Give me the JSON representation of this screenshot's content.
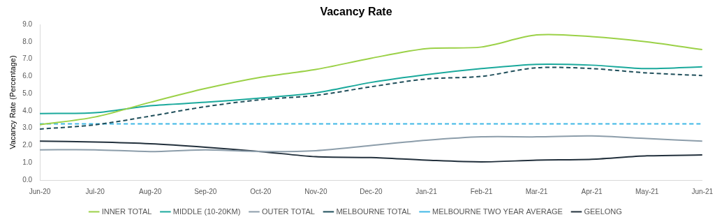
{
  "chart_data": {
    "type": "line",
    "title": "Vacancy Rate",
    "y_label": "Vacancy Rate (Percentage)",
    "categories": [
      "Jun-20",
      "Jul-20",
      "Aug-20",
      "Sep-20",
      "Oct-20",
      "Nov-20",
      "Dec-20",
      "Jan-21",
      "Feb-21",
      "Mar-21",
      "Apr-21",
      "May-21",
      "Jun-21"
    ],
    "series": [
      {
        "name": "INNER TOTAL",
        "color": "#9bd147",
        "line_style": "solid",
        "marker": "none",
        "values": [
          3.2,
          3.65,
          4.5,
          5.3,
          5.95,
          6.4,
          7.05,
          7.6,
          7.7,
          8.4,
          8.3,
          8.0,
          7.55
        ]
      },
      {
        "name": "MIDDLE (10-20KM)",
        "color": "#1aa99c",
        "line_style": "solid",
        "marker": "none",
        "values": [
          3.85,
          3.9,
          4.3,
          4.5,
          4.75,
          5.05,
          5.65,
          6.1,
          6.45,
          6.7,
          6.65,
          6.45,
          6.55
        ]
      },
      {
        "name": "OUTER TOTAL",
        "color": "#8c9daa",
        "line_style": "solid",
        "marker": "none",
        "values": [
          1.75,
          1.75,
          1.65,
          1.75,
          1.65,
          1.7,
          2.0,
          2.3,
          2.5,
          2.5,
          2.55,
          2.4,
          2.25
        ]
      },
      {
        "name": "MELBOURNE TOTAL",
        "color": "#1f4e5a",
        "line_style": "dashed",
        "marker": "none",
        "values": [
          2.95,
          3.2,
          3.7,
          4.25,
          4.65,
          4.9,
          5.4,
          5.85,
          6.0,
          6.5,
          6.45,
          6.2,
          6.05
        ]
      },
      {
        "name": "MELBOURNE TWO YEAR AVERAGE",
        "color": "#3fb7e5",
        "line_style": "dashed",
        "marker": "none",
        "values": [
          3.25,
          3.25,
          3.25,
          3.25,
          3.25,
          3.25,
          3.25,
          3.25,
          3.25,
          3.25,
          3.25,
          3.25,
          3.25
        ]
      },
      {
        "name": "GEELONG",
        "color": "#22303c",
        "line_style": "solid",
        "marker": "none",
        "values": [
          2.25,
          2.2,
          2.1,
          1.9,
          1.65,
          1.35,
          1.3,
          1.15,
          1.05,
          1.15,
          1.2,
          1.4,
          1.45
        ]
      }
    ],
    "ylim": [
      0,
      9
    ],
    "yticks": [
      {
        "value": 0,
        "label": "0.0"
      },
      {
        "value": 1,
        "label": "1.0"
      },
      {
        "value": 2,
        "label": "2.0"
      },
      {
        "value": 3,
        "label": "3.0"
      },
      {
        "value": 4,
        "label": "4.0"
      },
      {
        "value": 5,
        "label": "5.0"
      },
      {
        "value": 6,
        "label": "6.0"
      },
      {
        "value": 7,
        "label": "7.0"
      },
      {
        "value": 8,
        "label": "8.0"
      },
      {
        "value": 9,
        "label": "9.0"
      }
    ],
    "grid": false,
    "legend": "bottom"
  }
}
